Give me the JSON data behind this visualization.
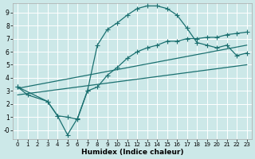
{
  "xlabel": "Humidex (Indice chaleur)",
  "bg_color": "#cce8e8",
  "line_color": "#1a7070",
  "grid_color": "#ffffff",
  "xlim": [
    -0.5,
    23.5
  ],
  "ylim": [
    -0.7,
    9.7
  ],
  "xticks": [
    0,
    1,
    2,
    3,
    4,
    5,
    6,
    7,
    8,
    9,
    10,
    11,
    12,
    13,
    14,
    15,
    16,
    17,
    18,
    19,
    20,
    21,
    22,
    23
  ],
  "yticks": [
    0,
    1,
    2,
    3,
    4,
    5,
    6,
    7,
    8,
    9
  ],
  "ytick_labels": [
    "-0",
    "1",
    "2",
    "3",
    "4",
    "5",
    "6",
    "7",
    "8",
    "9"
  ],
  "curve1_x": [
    0,
    1,
    3,
    4,
    5,
    6,
    7,
    8,
    9,
    10,
    11,
    12,
    13,
    14,
    15,
    16,
    17,
    18,
    19,
    20,
    21,
    22,
    23
  ],
  "curve1_y": [
    3.3,
    2.7,
    2.2,
    1.1,
    1.0,
    0.85,
    3.0,
    6.5,
    7.7,
    8.2,
    8.8,
    9.3,
    9.5,
    9.5,
    9.3,
    8.8,
    7.8,
    6.7,
    6.5,
    6.3,
    6.5,
    5.7,
    5.9
  ],
  "line2_x": [
    0,
    23
  ],
  "line2_y": [
    3.2,
    6.5
  ],
  "line3_x": [
    0,
    23
  ],
  "line3_y": [
    2.7,
    5.0
  ],
  "curve2_x": [
    0,
    3,
    4,
    5,
    6,
    7,
    8,
    9,
    10,
    11,
    12,
    13,
    14,
    15,
    16,
    17,
    18,
    19,
    20,
    21,
    22,
    23
  ],
  "curve2_y": [
    3.3,
    2.2,
    1.1,
    -0.35,
    0.9,
    3.0,
    3.3,
    4.2,
    4.8,
    5.5,
    6.0,
    6.3,
    6.5,
    6.8,
    6.8,
    7.0,
    7.0,
    7.1,
    7.1,
    7.3,
    7.4,
    7.5
  ]
}
